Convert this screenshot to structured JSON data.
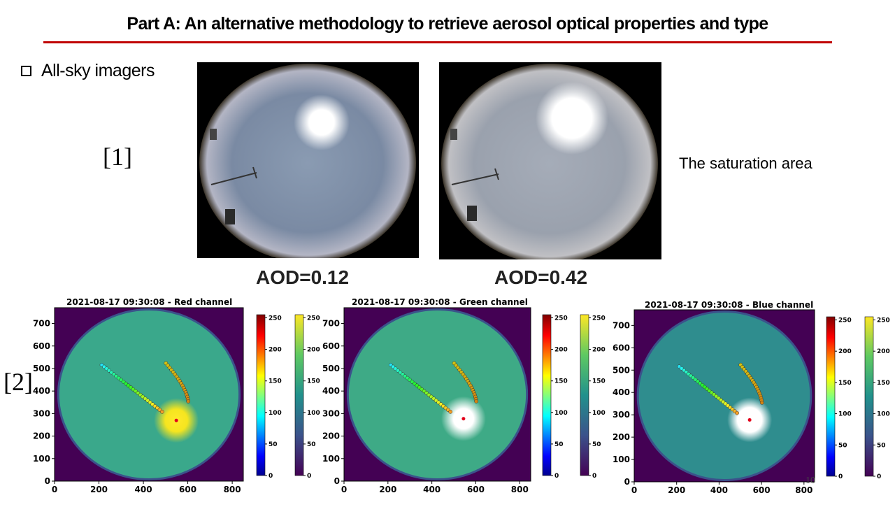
{
  "slide": {
    "title": "Part A: An alternative methodology to retrieve aerosol optical properties and type",
    "bullet": "All-sky imagers",
    "ref1": "[1]",
    "ref2": "[2]",
    "saturation_label": "The saturation area",
    "aod_left": "AOD=0.12",
    "aod_right": "AOD=0.42",
    "page_number": "10",
    "accent_color": "#c00000"
  },
  "panels": [
    {
      "title": "2021-08-17 09:30:08 - Red channel"
    },
    {
      "title": "2021-08-17 09:30:08 - Green channel"
    },
    {
      "title": "2021-08-17 09:30:08 - Blue channel"
    }
  ],
  "axes": {
    "x_ticks": [
      "0",
      "200",
      "400",
      "600",
      "800"
    ],
    "y_ticks": [
      "0",
      "100",
      "200",
      "300",
      "400",
      "500",
      "600",
      "700"
    ],
    "xlim": [
      0,
      850
    ],
    "ylim": [
      0,
      770
    ]
  },
  "colorbars": {
    "ticks": [
      "0",
      "50",
      "100",
      "150",
      "200",
      "250"
    ],
    "range": [
      0,
      255
    ],
    "left_colormap": "jet",
    "right_colormap": "viridis"
  }
}
